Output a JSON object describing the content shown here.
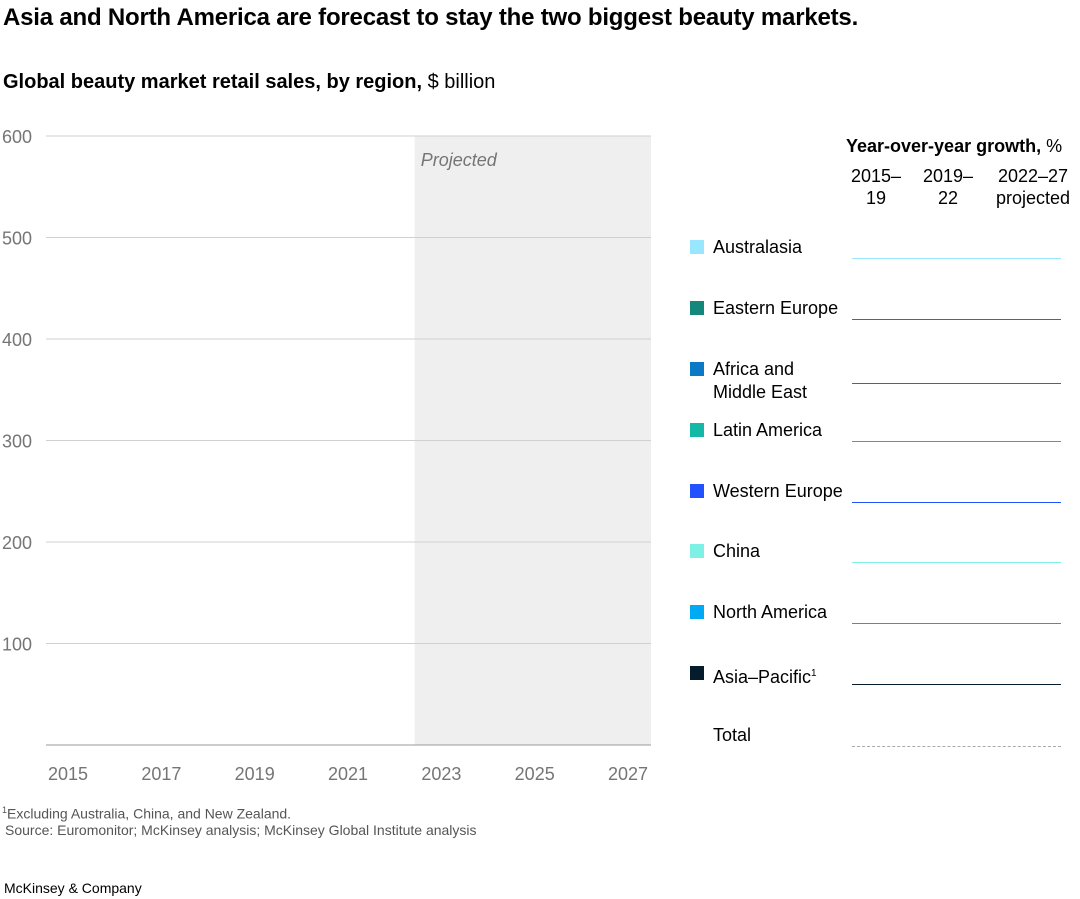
{
  "title": "Asia and North America are forecast to stay the two biggest beauty markets.",
  "subtitle_bold": "Global beauty market retail sales, by region,",
  "subtitle_unit": "$ billion",
  "chart_data": {
    "type": "area",
    "title": "Global beauty market retail sales, by region, $ billion",
    "ylim": [
      0,
      600
    ],
    "yticks": [
      "100",
      "200",
      "300",
      "400",
      "500",
      "600"
    ],
    "xticks": [
      "2015",
      "2017",
      "2019",
      "2021",
      "2023",
      "2025",
      "2027"
    ],
    "grid": true,
    "projected_label": "Projected",
    "projected_from": 2022,
    "series": [
      {
        "name": "Australasia",
        "color": "#99e6ff",
        "values": []
      },
      {
        "name": "Eastern Europe",
        "color": "#13877b",
        "values": []
      },
      {
        "name": "Africa and Middle East",
        "color": "#0b79c6",
        "values": []
      },
      {
        "name": "Latin America",
        "color": "#14b8a6",
        "values": []
      },
      {
        "name": "Western Europe",
        "color": "#2251ff",
        "values": []
      },
      {
        "name": "China",
        "color": "#7ff0e6",
        "values": []
      },
      {
        "name": "North America",
        "color": "#00a9f4",
        "values": []
      },
      {
        "name": "Asia–Pacific",
        "color": "#051c2c",
        "values": []
      }
    ]
  },
  "growth": {
    "heading_bold": "Year-over-year growth,",
    "heading_unit": "%",
    "columns": [
      "2015–\n19",
      "2019–\n22",
      "2022–27\nprojected"
    ],
    "rows": [
      {
        "label": "Australasia",
        "color": "#99e6ff"
      },
      {
        "label": "Eastern Europe",
        "color": "#13877b"
      },
      {
        "label": "Africa and\nMiddle East",
        "color": "#0b79c6"
      },
      {
        "label": "Latin America",
        "color": "#14b8a6"
      },
      {
        "label": "Western Europe",
        "color": "#2251ff"
      },
      {
        "label": "China",
        "color": "#7ff0e6"
      },
      {
        "label": "North America",
        "color": "#00a9f4"
      },
      {
        "label": "Asia–Pacific",
        "sup": "1",
        "color": "#051c2c"
      },
      {
        "label": "Total",
        "color": "#aaaaaa"
      }
    ]
  },
  "footnote": "Excluding Australia, China, and New Zealand.",
  "footnote_mark": "1",
  "source": "Source: Euromonitor; McKinsey analysis; McKinsey Global Institute analysis",
  "brand": "McKinsey & Company"
}
